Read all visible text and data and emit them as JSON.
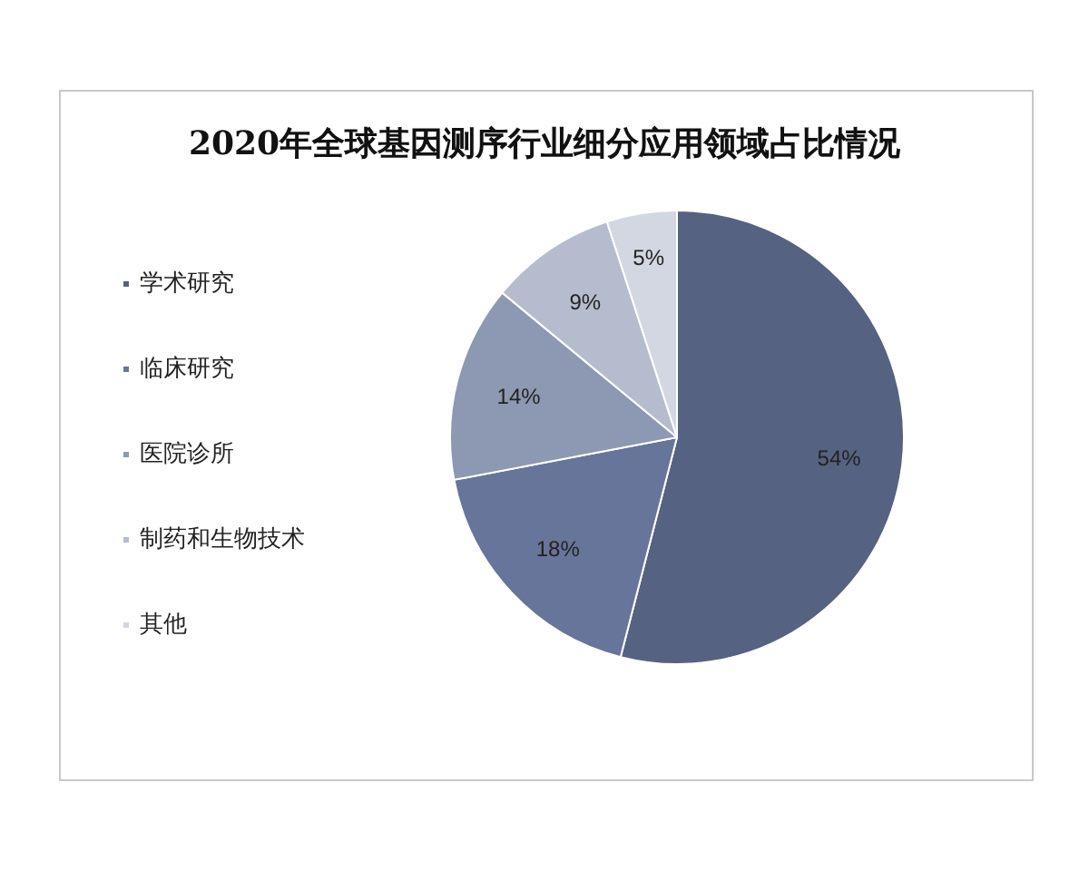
{
  "chart_data": {
    "type": "pie",
    "title": "2020年全球基因测序行业细分应用领域占比情况",
    "categories": [
      "学术研究",
      "临床研究",
      "医院诊所",
      "制药和生物技术",
      "其他"
    ],
    "values": [
      54,
      18,
      14,
      9,
      5
    ],
    "colors": [
      "#566281",
      "#67759a",
      "#8d98b2",
      "#b5bccd",
      "#d3d7e1"
    ],
    "value_labels": [
      "54%",
      "18%",
      "14%",
      "9%",
      "5%"
    ],
    "legend": "left"
  }
}
